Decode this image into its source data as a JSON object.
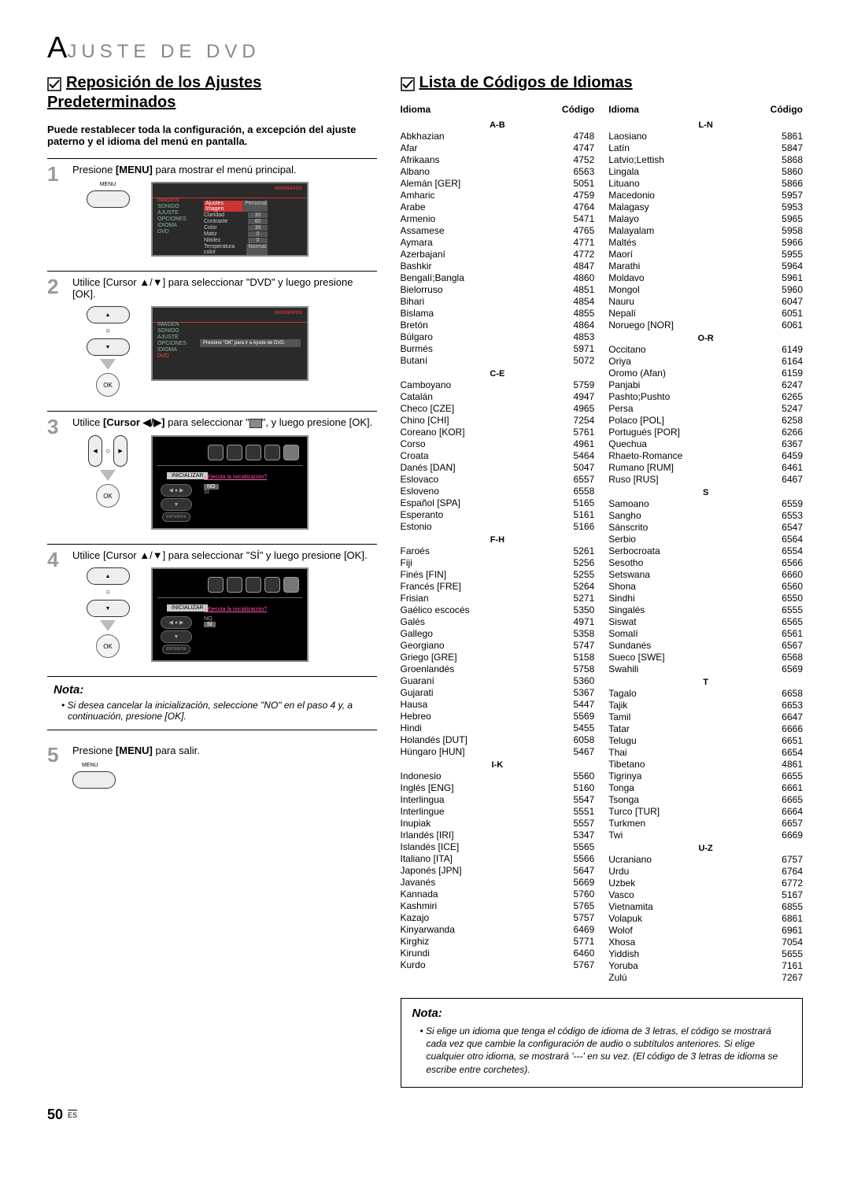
{
  "page_header_prefix": "A",
  "page_header_rest": "JUSTE DE DVD",
  "left": {
    "section_title": "Reposición de los Ajustes Predeterminados",
    "intro": "Puede restablecer toda la configuración, a excepción del ajuste paterno y el idioma del menú en pantalla.",
    "steps": {
      "s1": {
        "num": "1",
        "text_pre": "Presione ",
        "text_bold": "[MENU]",
        "text_post": " para mostrar el menú principal.",
        "btn_label": "MENU",
        "screen_brand": "MAGNAVOX",
        "menu_items": [
          "IMAGEN",
          "SONIDO",
          "AJUSTE",
          "OPCIONES",
          "IDIOMA",
          "DVD"
        ],
        "menu_selected": "IMAGEN",
        "settings": [
          [
            "Ajustes Imagen",
            "Personal"
          ],
          [
            "Claridad",
            "30"
          ],
          [
            "Contraste",
            "60"
          ],
          [
            "Color",
            "36"
          ],
          [
            "Matiz",
            "0"
          ],
          [
            "Nitidez",
            "0"
          ],
          [
            "Temperatura color",
            "Normal"
          ]
        ]
      },
      "s2": {
        "num": "2",
        "text": "Utilice [Cursor ▲/▼] para seleccionar \"DVD\" y luego presione [OK].",
        "screen_brand": "MAGNAVOX",
        "menu_items": [
          "IMAGEN",
          "SONIDO",
          "AJUSTE",
          "OPCIONES",
          "IDIOMA",
          "DVD"
        ],
        "menu_selected": "DVD",
        "center_text": "Presione \"OK\" para ir a Ajuste de DVD."
      },
      "s3": {
        "num": "3",
        "text_pre": "Utilice ",
        "text_bold": "[Cursor ◀/▶]",
        "text_mid": " para seleccionar \"",
        "text_post": "\", y luego presione [OK].",
        "label_init": "INICIALIZAR",
        "question": "¿Ejecuta la inicialización?",
        "opt_no": "NO",
        "opt_si": "SÍ",
        "enter_label": "ENTER/OK"
      },
      "s4": {
        "num": "4",
        "text": "Utilice [Cursor ▲/▼] para seleccionar \"SÍ\" y luego presione [OK].",
        "label_init": "INICIALIZAR",
        "question": "¿Ejecuta la inicialización?",
        "opt_no": "NO",
        "opt_si": "SÍ",
        "enter_label": "ENTER/OK"
      },
      "s5": {
        "num": "5",
        "text_pre": "Presione ",
        "text_bold": "[MENU]",
        "text_post": " para salir.",
        "btn_label": "MENU"
      }
    },
    "nota_title": "Nota:",
    "nota_items": [
      "Si desea cancelar la inicialización, seleccione \"NO\" en el paso 4 y, a continuación, presione [OK]."
    ]
  },
  "right": {
    "section_title": "Lista de Códigos de Idiomas",
    "headers": {
      "idioma": "Idioma",
      "codigo": "Código"
    },
    "groups_left": [
      {
        "label": "A-B",
        "items": [
          [
            "Abkhazian",
            "4748"
          ],
          [
            "Afar",
            "4747"
          ],
          [
            "Afrikaans",
            "4752"
          ],
          [
            "Albano",
            "6563"
          ],
          [
            "Alemán [GER]",
            "5051"
          ],
          [
            "Amharic",
            "4759"
          ],
          [
            "Arabe",
            "4764"
          ],
          [
            "Armenio",
            "5471"
          ],
          [
            "Assamese",
            "4765"
          ],
          [
            "Aymara",
            "4771"
          ],
          [
            "Azerbajaní",
            "4772"
          ],
          [
            "Bashkir",
            "4847"
          ],
          [
            "Bengalí;Bangla",
            "4860"
          ],
          [
            "Bielorruso",
            "4851"
          ],
          [
            "Bihari",
            "4854"
          ],
          [
            "Bislama",
            "4855"
          ],
          [
            "Bretón",
            "4864"
          ],
          [
            "Búlgaro",
            "4853"
          ],
          [
            "Burmés",
            "5971"
          ],
          [
            "Butaní",
            "5072"
          ]
        ]
      },
      {
        "label": "C-E",
        "items": [
          [
            "Camboyano",
            "5759"
          ],
          [
            "Catalán",
            "4947"
          ],
          [
            "Checo [CZE]",
            "4965"
          ],
          [
            "Chino [CHI]",
            "7254"
          ],
          [
            "Coreano [KOR]",
            "5761"
          ],
          [
            "Corso",
            "4961"
          ],
          [
            "Croata",
            "5464"
          ],
          [
            "Danés [DAN]",
            "5047"
          ],
          [
            "Eslovaco",
            "6557"
          ],
          [
            "Esloveno",
            "6558"
          ],
          [
            "Español [SPA]",
            "5165"
          ],
          [
            "Esperanto",
            "5161"
          ],
          [
            "Estonio",
            "5166"
          ]
        ]
      },
      {
        "label": "F-H",
        "items": [
          [
            "Faroés",
            "5261"
          ],
          [
            "Fiji",
            "5256"
          ],
          [
            "Finés [FIN]",
            "5255"
          ],
          [
            "Francés [FRE]",
            "5264"
          ],
          [
            "Frisian",
            "5271"
          ],
          [
            "Gaélico escocés",
            "5350"
          ],
          [
            "Galés",
            "4971"
          ],
          [
            "Gallego",
            "5358"
          ],
          [
            "Georgiano",
            "5747"
          ],
          [
            "Griego [GRE]",
            "5158"
          ],
          [
            "Groenlandés",
            "5758"
          ],
          [
            "Guaraní",
            "5360"
          ],
          [
            "Gujarati",
            "5367"
          ],
          [
            "Hausa",
            "5447"
          ],
          [
            "Hebreo",
            "5569"
          ],
          [
            "Hindi",
            "5455"
          ],
          [
            "Holandés [DUT]",
            "6058"
          ],
          [
            "Húngaro [HUN]",
            "5467"
          ]
        ]
      },
      {
        "label": "I-K",
        "items": [
          [
            "Indonesio",
            "5560"
          ],
          [
            "Inglés [ENG]",
            "5160"
          ],
          [
            "Interlingua",
            "5547"
          ],
          [
            "Interlingue",
            "5551"
          ],
          [
            "Inupiak",
            "5557"
          ],
          [
            "Irlandés [IRI]",
            "5347"
          ],
          [
            "Islandés [ICE]",
            "5565"
          ],
          [
            "Italiano [ITA]",
            "5566"
          ],
          [
            "Japonés [JPN]",
            "5647"
          ],
          [
            "Javanés",
            "5669"
          ],
          [
            "Kannada",
            "5760"
          ],
          [
            "Kashmiri",
            "5765"
          ],
          [
            "Kazajo",
            "5757"
          ],
          [
            "Kinyarwanda",
            "6469"
          ],
          [
            "Kirghiz",
            "5771"
          ],
          [
            "Kirundi",
            "6460"
          ],
          [
            "Kurdo",
            "5767"
          ]
        ]
      }
    ],
    "groups_right": [
      {
        "label": "L-N",
        "items": [
          [
            "Laosiano",
            "5861"
          ],
          [
            "Latín",
            "5847"
          ],
          [
            "Latvio;Lettish",
            "5868"
          ],
          [
            "Lingala",
            "5860"
          ],
          [
            "Lituano",
            "5866"
          ],
          [
            "Macedonio",
            "5957"
          ],
          [
            "Malagasy",
            "5953"
          ],
          [
            "Malayo",
            "5965"
          ],
          [
            "Malayalam",
            "5958"
          ],
          [
            "Maltés",
            "5966"
          ],
          [
            "Maorí",
            "5955"
          ],
          [
            "Marathi",
            "5964"
          ],
          [
            "Moldavo",
            "5961"
          ],
          [
            "Mongol",
            "5960"
          ],
          [
            "Nauru",
            "6047"
          ],
          [
            "Nepalí",
            "6051"
          ],
          [
            "Noruego [NOR]",
            "6061"
          ]
        ]
      },
      {
        "label": "O-R",
        "items": [
          [
            "Occitano",
            "6149"
          ],
          [
            "Oriya",
            "6164"
          ],
          [
            "Oromo (Afan)",
            "6159"
          ],
          [
            "Panjabi",
            "6247"
          ],
          [
            "Pashto;Pushto",
            "6265"
          ],
          [
            "Persa",
            "5247"
          ],
          [
            "Polaco [POL]",
            "6258"
          ],
          [
            "Portugués [POR]",
            "6266"
          ],
          [
            "Quechua",
            "6367"
          ],
          [
            "Rhaeto-Romance",
            "6459"
          ],
          [
            "Rumano [RUM]",
            "6461"
          ],
          [
            "Ruso [RUS]",
            "6467"
          ]
        ]
      },
      {
        "label": "S",
        "items": [
          [
            "Samoano",
            "6559"
          ],
          [
            "Sangho",
            "6553"
          ],
          [
            "Sánscrito",
            "6547"
          ],
          [
            "Serbio",
            "6564"
          ],
          [
            "Serbocroata",
            "6554"
          ],
          [
            "Sesotho",
            "6566"
          ],
          [
            "Setswana",
            "6660"
          ],
          [
            "Shona",
            "6560"
          ],
          [
            "Sindhi",
            "6550"
          ],
          [
            "Singalés",
            "6555"
          ],
          [
            "Siswat",
            "6565"
          ],
          [
            "Somalí",
            "6561"
          ],
          [
            "Sundanés",
            "6567"
          ],
          [
            "Sueco [SWE]",
            "6568"
          ],
          [
            "Swahili",
            "6569"
          ]
        ]
      },
      {
        "label": "T",
        "items": [
          [
            "Tagalo",
            "6658"
          ],
          [
            "Tajik",
            "6653"
          ],
          [
            "Tamil",
            "6647"
          ],
          [
            "Tatar",
            "6666"
          ],
          [
            "Telugu",
            "6651"
          ],
          [
            "Thai",
            "6654"
          ],
          [
            "Tibetano",
            "4861"
          ],
          [
            "Tigrinya",
            "6655"
          ],
          [
            "Tonga",
            "6661"
          ],
          [
            "Tsonga",
            "6665"
          ],
          [
            "Turco [TUR]",
            "6664"
          ],
          [
            "Turkmen",
            "6657"
          ],
          [
            "Twi",
            "6669"
          ]
        ]
      },
      {
        "label": "U-Z",
        "items": [
          [
            "Ucraniano",
            "6757"
          ],
          [
            "Urdu",
            "6764"
          ],
          [
            "Uzbek",
            "6772"
          ],
          [
            "Vasco",
            "5167"
          ],
          [
            "Vietnamita",
            "6855"
          ],
          [
            "Volapuk",
            "6861"
          ],
          [
            "Wolof",
            "6961"
          ],
          [
            "Xhosa",
            "7054"
          ],
          [
            "Yiddish",
            "5655"
          ],
          [
            "Yoruba",
            "7161"
          ],
          [
            "Zulú",
            "7267"
          ]
        ]
      }
    ],
    "nota_title": "Nota:",
    "nota_items": [
      "Si elige un idioma que tenga el código de idioma de 3 letras, el código se mostrará cada vez que cambie la configuración de audio o subtítulos anteriores. Si elige cualquier otro idioma, se mostrará '---' en su vez. (El código de 3 letras de idioma se escribe entre corchetes)."
    ]
  },
  "footer": {
    "page_number": "50",
    "lang_code": "ES"
  }
}
